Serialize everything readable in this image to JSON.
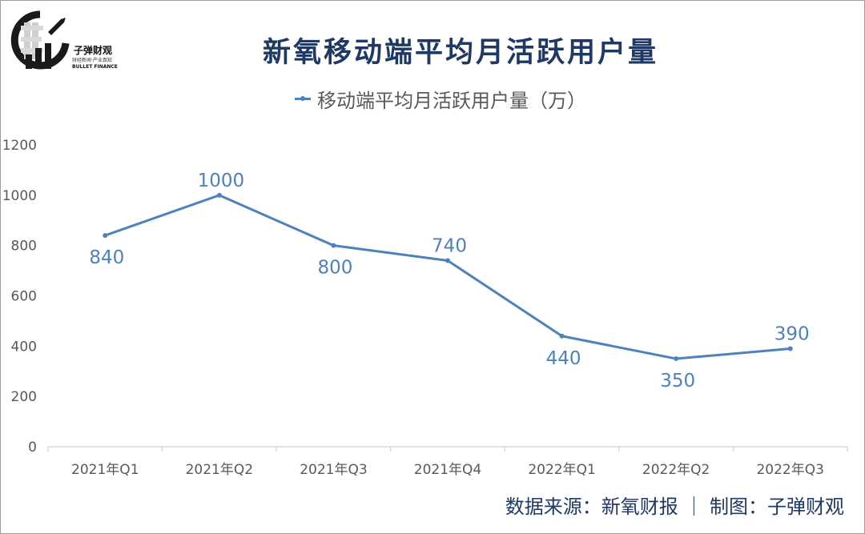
{
  "logo": {
    "name": "子弹财观",
    "slogan": "财经新闻·产业真知",
    "english": "BULLET FINANCE"
  },
  "footer": "数据来源：新氧财报 ｜ 制图：子弹财观",
  "colors": {
    "title": "#1f3864",
    "series": "#4e81bd",
    "text": "#595959",
    "axis": "#d9d9d9"
  },
  "chart_data": {
    "type": "line",
    "title": "新氧移动端平均月活跃用户量",
    "legend": "top",
    "grid": false,
    "xlabel": "",
    "ylabel": "",
    "ylim": [
      0,
      1200
    ],
    "yticks": [
      0,
      200,
      400,
      600,
      800,
      1000,
      1200
    ],
    "categories": [
      "2021年Q1",
      "2021年Q2",
      "2021年Q3",
      "2021年Q4",
      "2022年Q1",
      "2022年Q2",
      "2022年Q3"
    ],
    "series": [
      {
        "name": "移动端平均月活跃用户量（万）",
        "values": [
          840,
          1000,
          800,
          740,
          440,
          350,
          390
        ],
        "label_positions": [
          "below",
          "above",
          "below",
          "above",
          "below",
          "below",
          "above"
        ]
      }
    ]
  }
}
